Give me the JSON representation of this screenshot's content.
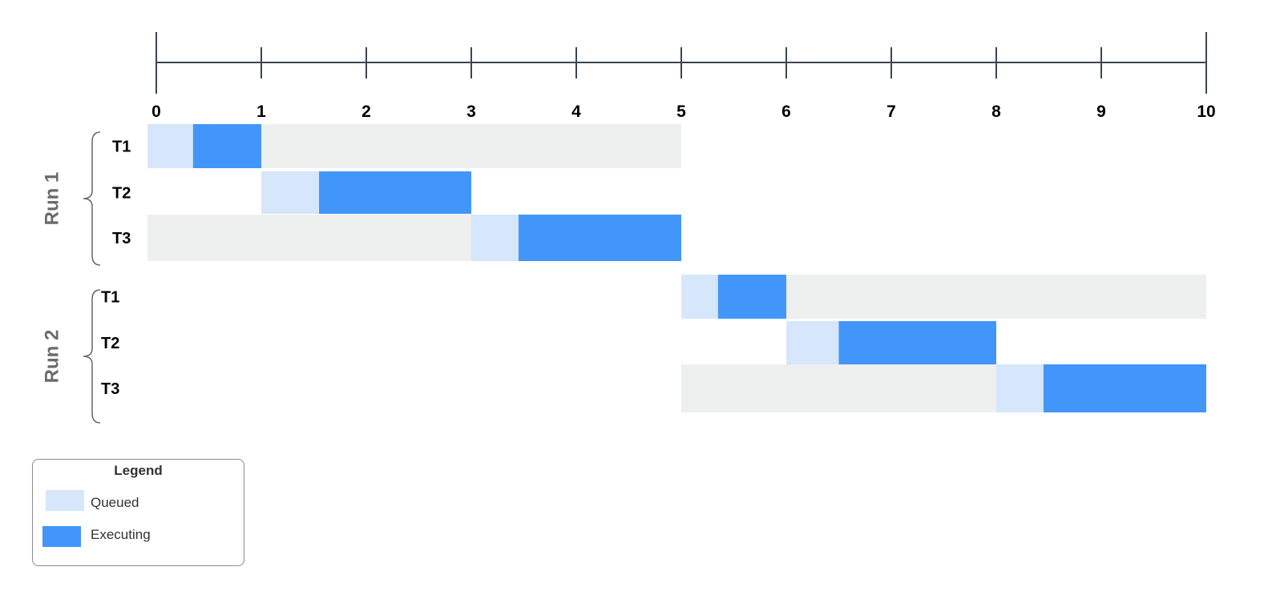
{
  "axis": {
    "ticks": [
      "0",
      "1",
      "2",
      "3",
      "4",
      "5",
      "6",
      "7",
      "8",
      "9",
      "10"
    ],
    "min": 0,
    "max": 10
  },
  "colors": {
    "queued": "#d6e6fb",
    "executing": "#4296fa",
    "idle": "#eeefef",
    "axis": "#3b4652",
    "brace": "#666666"
  },
  "runs": [
    {
      "label": "Run 1",
      "tasks": [
        {
          "label": "T1",
          "idle": [
            [
              1.0,
              5.0
            ]
          ],
          "queued": [
            0.0,
            0.35
          ],
          "executing": [
            0.35,
            1.0
          ]
        },
        {
          "label": "T2",
          "idle": [],
          "queued": [
            1.0,
            1.55
          ],
          "executing": [
            1.55,
            3.0
          ]
        },
        {
          "label": "T3",
          "idle": [
            [
              0.0,
              3.0
            ]
          ],
          "queued": [
            3.0,
            3.45
          ],
          "executing": [
            3.45,
            5.0
          ]
        }
      ]
    },
    {
      "label": "Run 2",
      "tasks": [
        {
          "label": "T1",
          "idle": [
            [
              6.0,
              10.0
            ]
          ],
          "queued": [
            5.0,
            5.35
          ],
          "executing": [
            5.35,
            6.0
          ]
        },
        {
          "label": "T2",
          "idle": [],
          "queued": [
            6.0,
            6.5
          ],
          "executing": [
            6.5,
            8.0
          ]
        },
        {
          "label": "T3",
          "idle": [
            [
              5.0,
              8.0
            ]
          ],
          "queued": [
            8.0,
            8.45
          ],
          "executing": [
            8.45,
            10.0
          ]
        }
      ]
    }
  ],
  "legend": {
    "title": "Legend",
    "items": [
      {
        "label": "Queued",
        "key": "queued"
      },
      {
        "label": "Executing",
        "key": "executing"
      }
    ]
  }
}
